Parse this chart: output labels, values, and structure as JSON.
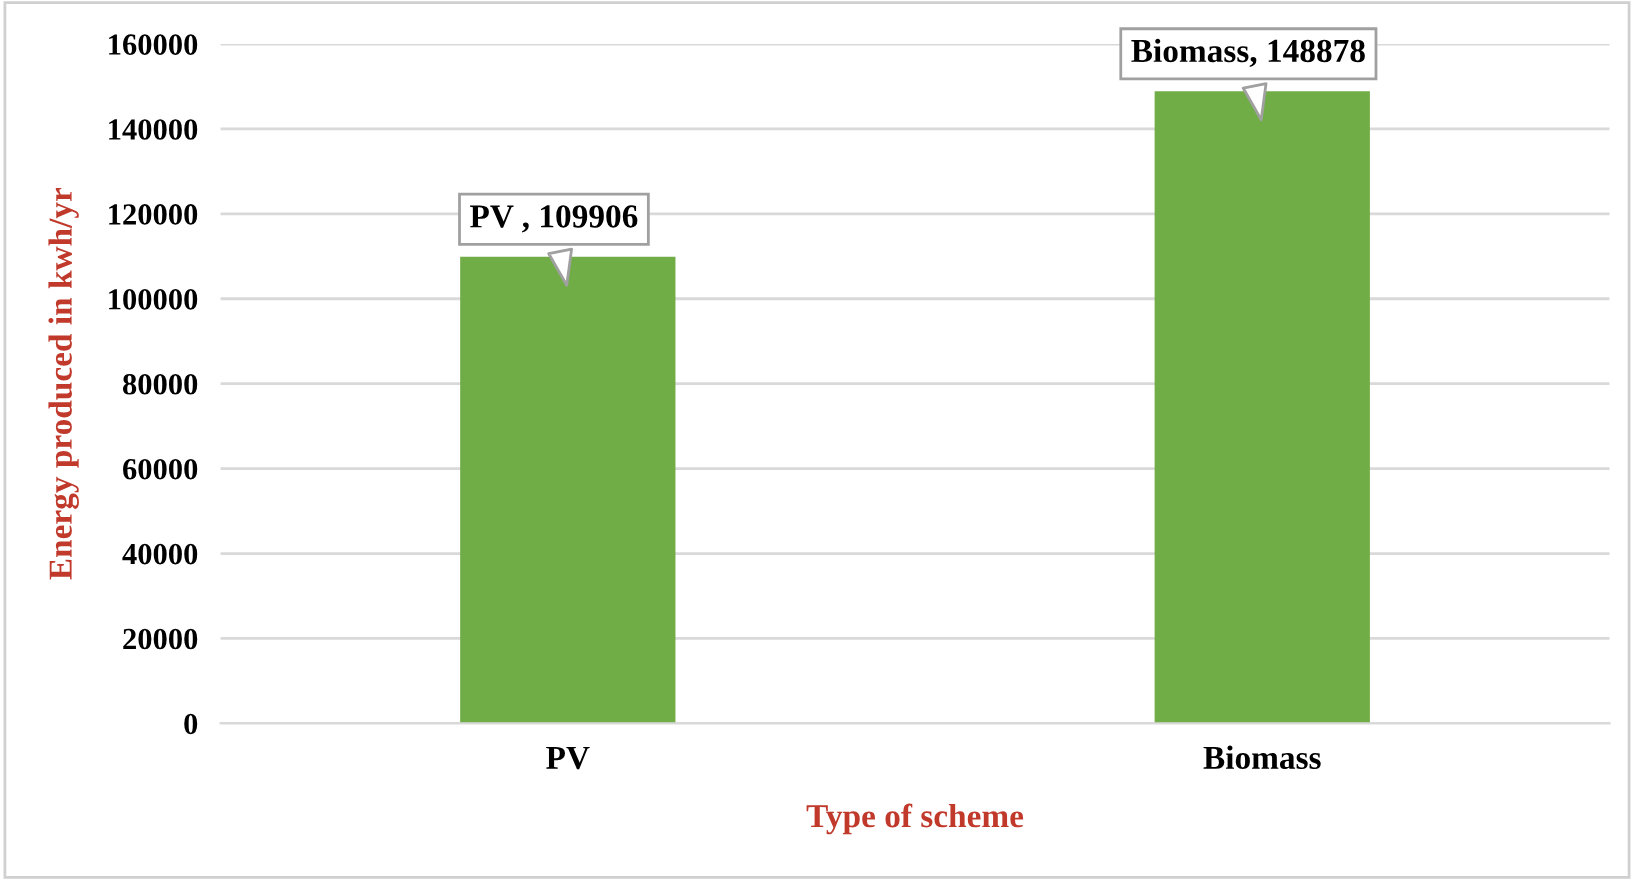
{
  "chart_data": {
    "type": "bar",
    "xlabel": "Type of scheme",
    "ylabel": "Energy produced in kwh/yr",
    "categories": [
      "PV",
      "Biomass"
    ],
    "values": [
      109906,
      148878
    ],
    "color": "#70ad47",
    "value_labels": [
      "PV , 109906",
      "Biomass, 148878"
    ],
    "ylim": [
      0,
      160000
    ],
    "yticks": [
      0,
      20000,
      40000,
      60000,
      80000,
      100000,
      120000,
      140000,
      160000
    ],
    "grid": "y"
  }
}
